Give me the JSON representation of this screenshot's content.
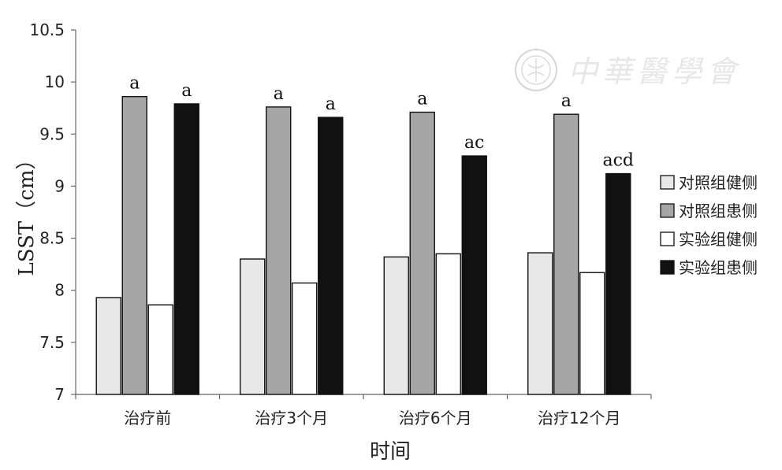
{
  "chart_data": {
    "type": "bar",
    "title": "",
    "xlabel": "时间",
    "ylabel": "LSST（cm）",
    "ylim": [
      7,
      10.5
    ],
    "yticks": [
      "7",
      "7.5",
      "8",
      "8.5",
      "9",
      "9.5",
      "10",
      "10.5"
    ],
    "categories": [
      "治疗前",
      "治疗3个月",
      "治疗6个月",
      "治疗12个月"
    ],
    "legend_position": "right",
    "series": [
      {
        "name": "对照组健侧",
        "color": "#e8e8e8",
        "values": [
          7.93,
          8.3,
          8.32,
          8.36
        ],
        "labels": [
          "",
          "",
          "",
          ""
        ]
      },
      {
        "name": "对照组患侧",
        "color": "#a6a6a6",
        "values": [
          9.86,
          9.76,
          9.71,
          9.69
        ],
        "labels": [
          "a",
          "a",
          "a",
          "a"
        ]
      },
      {
        "name": "实验组健侧",
        "color": "#ffffff",
        "values": [
          7.86,
          8.07,
          8.35,
          8.17
        ],
        "labels": [
          "",
          "",
          "",
          ""
        ]
      },
      {
        "name": "实验组患侧",
        "color": "#111111",
        "values": [
          9.79,
          9.66,
          9.29,
          9.12
        ],
        "labels": [
          "a",
          "a",
          "ac",
          "acd"
        ]
      }
    ]
  },
  "watermark": {
    "text": "中華醫學會",
    "icon": "medical-association-seal-icon"
  }
}
